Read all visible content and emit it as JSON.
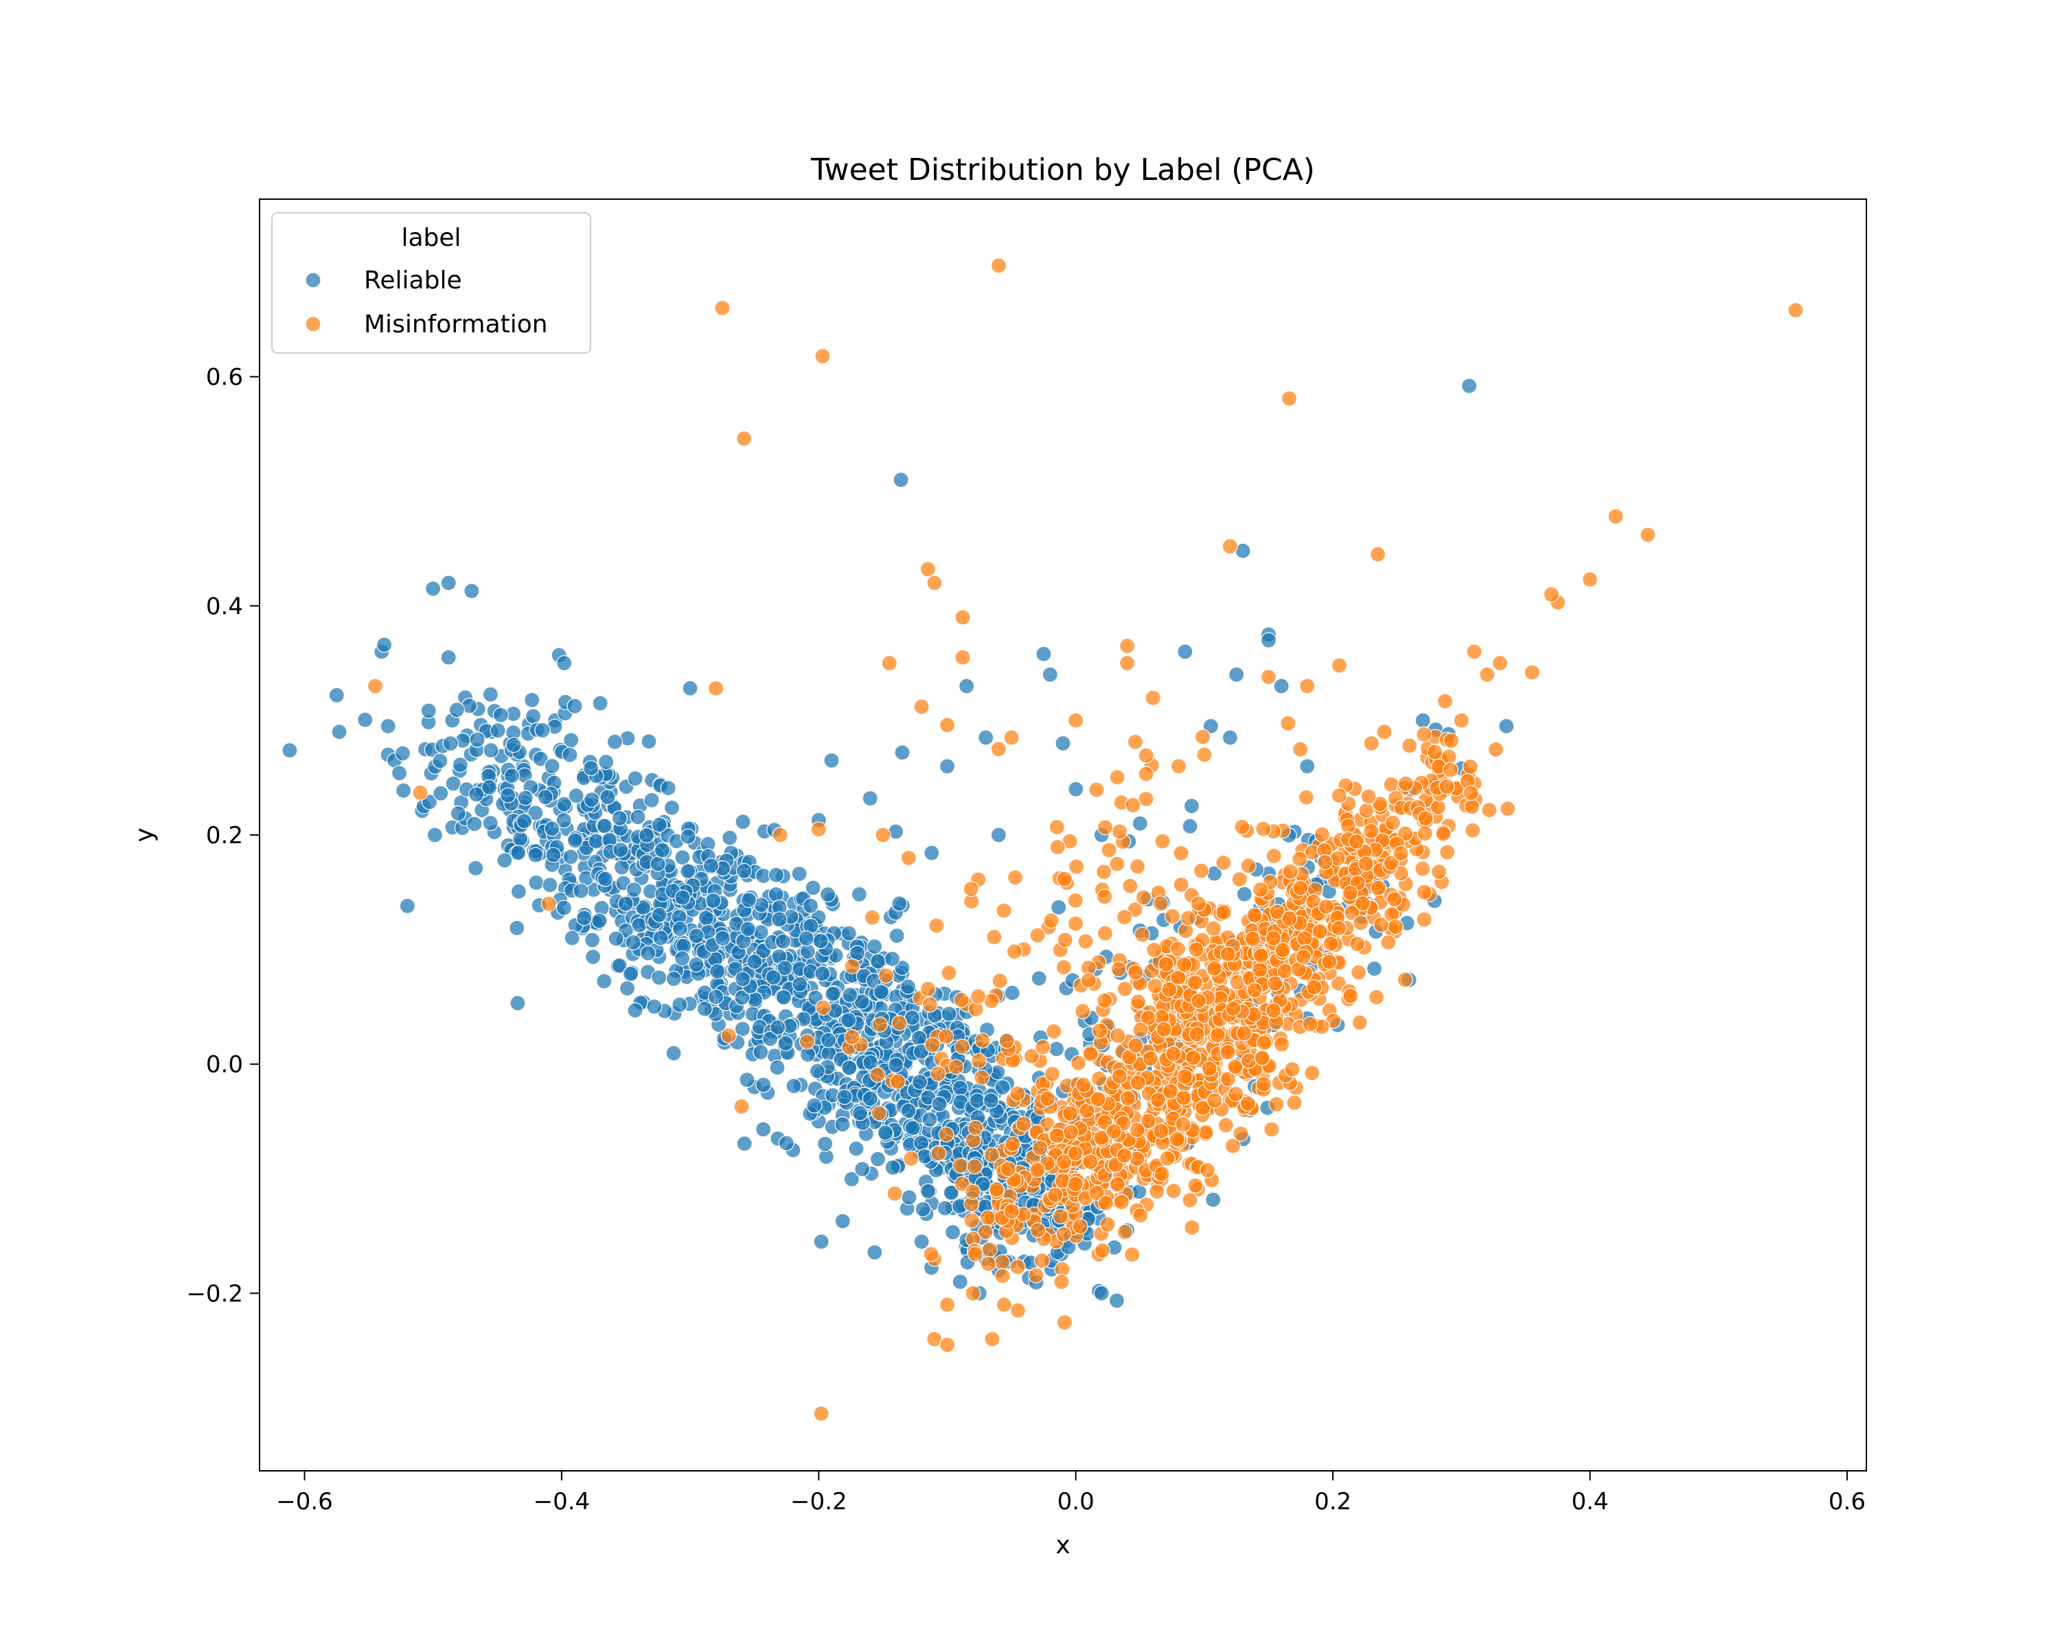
{
  "chart_data": {
    "type": "scatter",
    "title": "Tweet Distribution by Label (PCA)",
    "xlabel": "x",
    "ylabel": "y",
    "xlim": [
      -0.635,
      0.615
    ],
    "ylim": [
      -0.355,
      0.755
    ],
    "xticks": [
      -0.6,
      -0.4,
      -0.2,
      0.0,
      0.2,
      0.4,
      0.6
    ],
    "xtick_labels": [
      "−0.6",
      "−0.4",
      "−0.2",
      "0.0",
      "0.2",
      "0.4",
      "0.6"
    ],
    "yticks": [
      -0.2,
      0.0,
      0.2,
      0.4,
      0.6
    ],
    "ytick_labels": [
      "−0.2",
      "0.0",
      "0.2",
      "0.4",
      "0.6"
    ],
    "grid": false,
    "legend": {
      "title": "label",
      "placement": "top-left"
    },
    "series": [
      {
        "name": "Reliable",
        "color": "#1f77b4",
        "points": [
          [
            -0.575,
            0.322
          ],
          [
            -0.573,
            0.29
          ],
          [
            -0.54,
            0.36
          ],
          [
            -0.538,
            0.366
          ],
          [
            -0.535,
            0.295
          ],
          [
            -0.535,
            0.27
          ],
          [
            -0.53,
            0.265
          ],
          [
            -0.52,
            0.138
          ],
          [
            -0.5,
            0.415
          ],
          [
            -0.488,
            0.42
          ],
          [
            -0.47,
            0.413
          ],
          [
            -0.488,
            0.355
          ],
          [
            -0.485,
            0.3
          ],
          [
            -0.475,
            0.32
          ],
          [
            -0.465,
            0.31
          ],
          [
            -0.455,
            0.29
          ],
          [
            -0.44,
            0.28
          ],
          [
            -0.43,
            0.26
          ],
          [
            -0.42,
            0.27
          ],
          [
            -0.41,
            0.25
          ],
          [
            -0.402,
            0.357
          ],
          [
            -0.398,
            0.35
          ],
          [
            -0.405,
            0.3
          ],
          [
            -0.37,
            0.315
          ],
          [
            -0.3,
            0.328
          ],
          [
            -0.136,
            0.51
          ],
          [
            0.306,
            0.592
          ],
          [
            -0.2,
            0.213
          ],
          [
            -0.19,
            0.265
          ],
          [
            -0.16,
            0.232
          ],
          [
            -0.14,
            0.203
          ],
          [
            -0.135,
            0.272
          ],
          [
            -0.1,
            0.26
          ],
          [
            -0.085,
            0.33
          ],
          [
            -0.07,
            0.285
          ],
          [
            -0.06,
            0.2
          ],
          [
            -0.025,
            0.358
          ],
          [
            -0.02,
            0.34
          ],
          [
            -0.01,
            0.28
          ],
          [
            0.0,
            0.24
          ],
          [
            0.02,
            0.2
          ],
          [
            0.05,
            0.21
          ],
          [
            0.085,
            0.36
          ],
          [
            0.105,
            0.295
          ],
          [
            0.12,
            0.285
          ],
          [
            0.13,
            0.448
          ],
          [
            0.15,
            0.375
          ],
          [
            0.15,
            0.37
          ],
          [
            0.125,
            0.34
          ],
          [
            0.16,
            0.33
          ],
          [
            0.18,
            0.26
          ],
          [
            0.27,
            0.3
          ],
          [
            0.28,
            0.292
          ],
          [
            0.29,
            0.288
          ],
          [
            0.3,
            0.258
          ],
          [
            0.335,
            0.295
          ],
          [
            -0.198,
            -0.155
          ],
          [
            -0.2,
            -0.05
          ],
          [
            -0.22,
            -0.075
          ],
          [
            -0.25,
            -0.02
          ],
          [
            -0.12,
            -0.155
          ],
          [
            -0.09,
            -0.19
          ],
          [
            -0.075,
            -0.2
          ],
          [
            -0.07,
            -0.17
          ],
          [
            -0.06,
            -0.18
          ],
          [
            0.018,
            -0.198
          ],
          [
            0.02,
            -0.2
          ],
          [
            0.03,
            -0.16
          ],
          [
            0.04,
            -0.145
          ],
          [
            0.18,
            0.04
          ]
        ],
        "clusters": [
          {
            "cx": -0.45,
            "cy": 0.255,
            "sx": 0.04,
            "sy": 0.04,
            "n": 110
          },
          {
            "cx": -0.38,
            "cy": 0.2,
            "sx": 0.035,
            "sy": 0.035,
            "n": 150
          },
          {
            "cx": -0.31,
            "cy": 0.135,
            "sx": 0.035,
            "sy": 0.035,
            "n": 220
          },
          {
            "cx": -0.24,
            "cy": 0.085,
            "sx": 0.035,
            "sy": 0.04,
            "n": 230
          },
          {
            "cx": -0.17,
            "cy": 0.03,
            "sx": 0.035,
            "sy": 0.045,
            "n": 240
          },
          {
            "cx": -0.11,
            "cy": -0.03,
            "sx": 0.035,
            "sy": 0.045,
            "n": 240
          },
          {
            "cx": -0.06,
            "cy": -0.08,
            "sx": 0.03,
            "sy": 0.04,
            "n": 200
          },
          {
            "cx": -0.02,
            "cy": -0.12,
            "sx": 0.025,
            "sy": 0.03,
            "n": 90
          },
          {
            "cx": 0.06,
            "cy": 0.04,
            "sx": 0.05,
            "sy": 0.07,
            "n": 80
          },
          {
            "cx": 0.2,
            "cy": 0.14,
            "sx": 0.04,
            "sy": 0.04,
            "n": 45
          }
        ]
      },
      {
        "name": "Misinformation",
        "color": "#ff7f0e",
        "points": [
          [
            -0.545,
            0.33
          ],
          [
            -0.51,
            0.237
          ],
          [
            -0.275,
            0.66
          ],
          [
            -0.258,
            0.546
          ],
          [
            -0.197,
            0.618
          ],
          [
            -0.06,
            0.697
          ],
          [
            0.166,
            0.581
          ],
          [
            0.56,
            0.658
          ],
          [
            0.42,
            0.478
          ],
          [
            0.445,
            0.462
          ],
          [
            0.4,
            0.423
          ],
          [
            0.375,
            0.403
          ],
          [
            0.37,
            0.41
          ],
          [
            0.235,
            0.445
          ],
          [
            0.12,
            0.452
          ],
          [
            -0.115,
            0.432
          ],
          [
            -0.11,
            0.42
          ],
          [
            -0.088,
            0.39
          ],
          [
            -0.088,
            0.355
          ],
          [
            -0.145,
            0.35
          ],
          [
            -0.12,
            0.312
          ],
          [
            -0.1,
            0.296
          ],
          [
            -0.06,
            0.275
          ],
          [
            -0.05,
            0.285
          ],
          [
            0.04,
            0.365
          ],
          [
            0.04,
            0.35
          ],
          [
            0.0,
            0.3
          ],
          [
            -0.28,
            0.328
          ],
          [
            -0.41,
            0.14
          ],
          [
            -0.23,
            0.2
          ],
          [
            -0.2,
            0.205
          ],
          [
            -0.13,
            0.18
          ],
          [
            -0.15,
            0.2
          ],
          [
            -0.26,
            -0.037
          ],
          [
            -0.27,
            0.025
          ],
          [
            -0.198,
            -0.305
          ],
          [
            -0.11,
            -0.24
          ],
          [
            -0.1,
            -0.245
          ],
          [
            -0.065,
            -0.24
          ],
          [
            -0.045,
            -0.215
          ],
          [
            -0.1,
            -0.21
          ],
          [
            -0.08,
            -0.2
          ],
          [
            -0.11,
            -0.17
          ],
          [
            0.0,
            -0.15
          ],
          [
            0.15,
            0.338
          ],
          [
            0.18,
            0.33
          ],
          [
            0.205,
            0.348
          ],
          [
            0.31,
            0.36
          ],
          [
            0.32,
            0.34
          ],
          [
            0.33,
            0.35
          ],
          [
            0.355,
            0.342
          ],
          [
            0.3,
            0.3
          ],
          [
            0.24,
            0.29
          ],
          [
            0.23,
            0.28
          ],
          [
            0.29,
            0.208
          ],
          [
            0.31,
            0.245
          ],
          [
            0.27,
            0.185
          ],
          [
            0.22,
            0.08
          ],
          [
            0.1,
            0.27
          ],
          [
            0.08,
            0.26
          ]
        ],
        "clusters": [
          {
            "cx": 0.0,
            "cy": -0.08,
            "sx": 0.03,
            "sy": 0.035,
            "n": 150
          },
          {
            "cx": 0.045,
            "cy": -0.05,
            "sx": 0.035,
            "sy": 0.035,
            "n": 200
          },
          {
            "cx": 0.09,
            "cy": 0.01,
            "sx": 0.035,
            "sy": 0.04,
            "n": 200
          },
          {
            "cx": 0.13,
            "cy": 0.07,
            "sx": 0.035,
            "sy": 0.04,
            "n": 200
          },
          {
            "cx": 0.18,
            "cy": 0.12,
            "sx": 0.03,
            "sy": 0.035,
            "n": 160
          },
          {
            "cx": 0.23,
            "cy": 0.18,
            "sx": 0.025,
            "sy": 0.03,
            "n": 120
          },
          {
            "cx": 0.28,
            "cy": 0.24,
            "sx": 0.025,
            "sy": 0.03,
            "n": 60
          },
          {
            "cx": 0.05,
            "cy": 0.14,
            "sx": 0.06,
            "sy": 0.07,
            "n": 90
          },
          {
            "cx": -0.1,
            "cy": 0.02,
            "sx": 0.05,
            "sy": 0.05,
            "n": 60
          },
          {
            "cx": -0.05,
            "cy": -0.14,
            "sx": 0.025,
            "sy": 0.025,
            "n": 50
          }
        ]
      }
    ]
  }
}
